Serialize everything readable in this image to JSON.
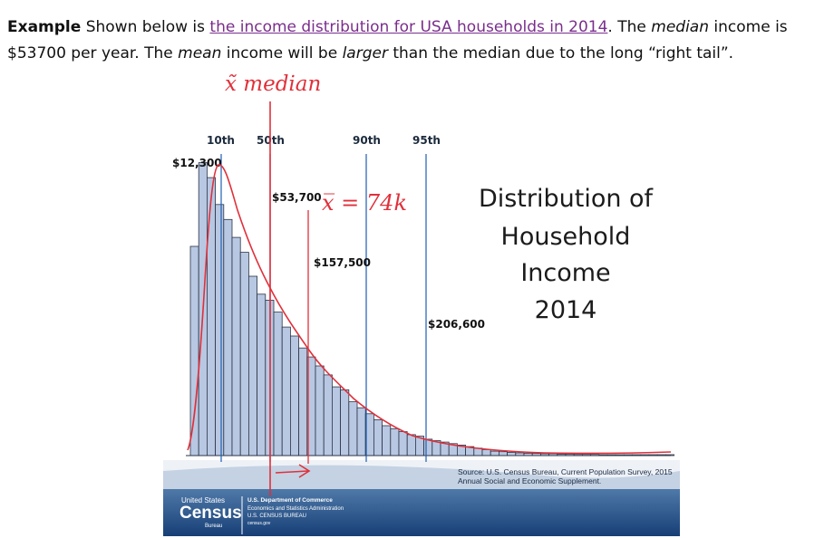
{
  "intro": {
    "bold_lead": "Example",
    "text_1": " Shown below is ",
    "link_text": "the income distribution for USA households in 2014",
    "text_2": ". The ",
    "median_word": "median",
    "text_3": " income is $53700 per year. The ",
    "mean_word": "mean",
    "text_4": " income will be ",
    "larger_word": "larger",
    "text_5": " than the median due to the long “right tail”."
  },
  "annotations": {
    "median_label": "x̃ median",
    "mean_label": "x̅ = 74k",
    "colors": {
      "ink": "#e0303a"
    }
  },
  "figure": {
    "title_lines": [
      "Distribution of",
      "Household",
      "Income",
      "2014"
    ],
    "source_lines": [
      "Source: U.S. Census Bureau, Current Population Survey, 2015",
      "Annual Social and Economic Supplement."
    ],
    "footer": {
      "logo_top": "United States",
      "logo_main": "Census",
      "logo_bottom": "Bureau",
      "dept_line_1": "U.S. Department of Commerce",
      "dept_line_2": "Economics and Statistics Administration",
      "dept_line_3": "U.S. CENSUS BUREAU",
      "dept_line_4": "census.gov"
    },
    "colors": {
      "bar_fill": "#b8c8e2",
      "bar_stroke": "#2b3345",
      "marker_line": "#1d5fb3",
      "footer_bg": "#1d4f88"
    }
  },
  "chart_data": {
    "type": "bar",
    "markers": [
      {
        "percentile": "10th",
        "value_label": "$12,300"
      },
      {
        "percentile": "50th",
        "value_label": "$53,700"
      },
      {
        "percentile": "90th",
        "value_label": "$157,500"
      },
      {
        "percentile": "95th",
        "value_label": "$206,600"
      }
    ],
    "relative_heights": [
      0.7,
      0.98,
      0.93,
      0.84,
      0.79,
      0.73,
      0.68,
      0.6,
      0.54,
      0.52,
      0.48,
      0.43,
      0.4,
      0.36,
      0.33,
      0.3,
      0.27,
      0.23,
      0.22,
      0.18,
      0.16,
      0.14,
      0.12,
      0.1,
      0.09,
      0.08,
      0.07,
      0.065,
      0.055,
      0.05,
      0.045,
      0.04,
      0.035,
      0.03,
      0.025,
      0.02,
      0.015,
      0.013,
      0.011,
      0.009,
      0.008,
      0.007,
      0.006,
      0.006,
      0.005,
      0.005,
      0.004,
      0.004,
      0.004,
      0.003,
      0.003,
      0.003,
      0.002,
      0.002,
      0.002,
      0.002,
      0.002,
      0.002
    ]
  }
}
